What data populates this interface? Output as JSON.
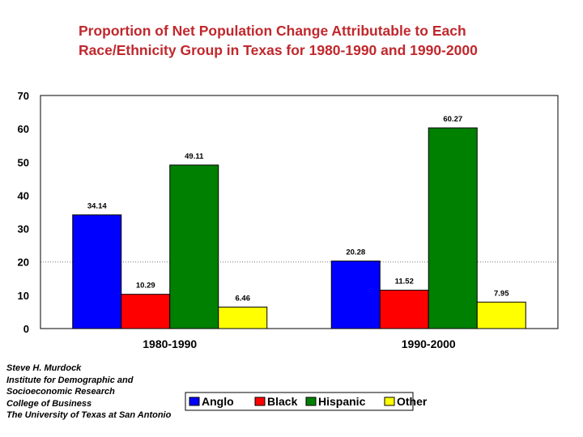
{
  "title": "Proportion of Net Population Change Attributable to Each Race/Ethnicity Group in Texas for 1980-1990 and 1990-2000",
  "credits": [
    "Steve H. Murdock",
    "Institute for Demographic and",
    "Socioeconomic Research",
    "College of Business",
    "The University of Texas at San Antonio"
  ],
  "chart_data": {
    "type": "bar",
    "title": "Proportion of Net Population Change Attributable to Each Race/Ethnicity Group in Texas for 1980-1990 and 1990-2000",
    "xlabel": "",
    "ylabel": "",
    "categories": [
      "1980-1990",
      "1990-2000"
    ],
    "series": [
      {
        "name": "Anglo",
        "color": "#0000ff",
        "values": [
          34.14,
          20.28
        ],
        "labels": [
          "34.14",
          "20.28"
        ]
      },
      {
        "name": "Black",
        "color": "#ff0000",
        "values": [
          10.29,
          11.52
        ],
        "labels": [
          "10.29",
          "11.52"
        ]
      },
      {
        "name": "Hispanic",
        "color": "#008000",
        "values": [
          49.11,
          60.27
        ],
        "labels": [
          "49.11",
          "60.27"
        ]
      },
      {
        "name": "Other",
        "color": "#ffff00",
        "values": [
          6.46,
          7.95
        ],
        "labels": [
          "6.46",
          "7.95"
        ]
      }
    ],
    "ylim": [
      0,
      70
    ],
    "yticks": [
      "0",
      "10",
      "20",
      "30",
      "40",
      "50",
      "60",
      "70"
    ],
    "gridlines": [
      20
    ],
    "legend_position": "bottom-right"
  }
}
